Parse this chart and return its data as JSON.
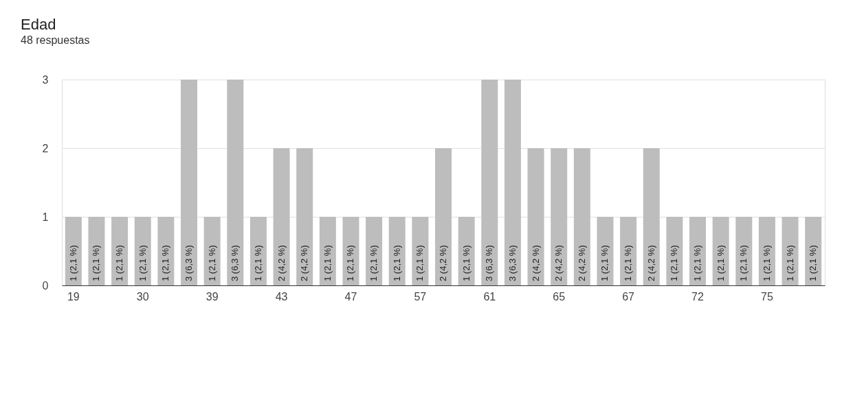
{
  "chart_data": {
    "type": "bar",
    "title": "Edad",
    "subtitle": "48 respuestas",
    "categories": [
      "19",
      null,
      null,
      "30",
      null,
      null,
      "39",
      null,
      null,
      "43",
      null,
      null,
      "47",
      null,
      null,
      "57",
      null,
      null,
      "61",
      null,
      null,
      "65",
      null,
      null,
      "67",
      null,
      null,
      "72",
      null,
      null,
      "75",
      null,
      null
    ],
    "values": [
      1,
      1,
      1,
      1,
      1,
      3,
      1,
      3,
      1,
      2,
      2,
      1,
      1,
      1,
      1,
      1,
      2,
      1,
      3,
      3,
      2,
      2,
      2,
      1,
      1,
      2,
      1,
      1,
      1,
      1,
      1,
      1,
      1
    ],
    "value_labels": [
      "1 (2,1 %)",
      "1 (2,1 %)",
      "1 (2,1 %)",
      "1 (2,1 %)",
      "1 (2,1 %)",
      "3 (6,3 %)",
      "1 (2,1 %)",
      "3 (6,3 %)",
      "1 (2,1 %)",
      "2 (4,2 %)",
      "2 (4,2 %)",
      "1 (2,1 %)",
      "1 (2,1 %)",
      "1 (2,1 %)",
      "1 (2,1 %)",
      "1 (2,1 %)",
      "2 (4,2 %)",
      "1 (2,1 %)",
      "3 (6,3 %)",
      "3 (6,3 %)",
      "2 (4,2 %)",
      "2 (4,2 %)",
      "2 (4,2 %)",
      "1 (2,1 %)",
      "1 (2,1 %)",
      "2 (4,2 %)",
      "1 (2,1 %)",
      "1 (2,1 %)",
      "1 (2,1 %)",
      "1 (2,1 %)",
      "1 (2,1 %)",
      "1 (2,1 %)",
      "1 (2,1 %)"
    ],
    "color": "#bdbdbd",
    "ylim": [
      0,
      3
    ],
    "yticks": [
      0,
      1,
      2,
      3
    ],
    "grid": "y"
  }
}
